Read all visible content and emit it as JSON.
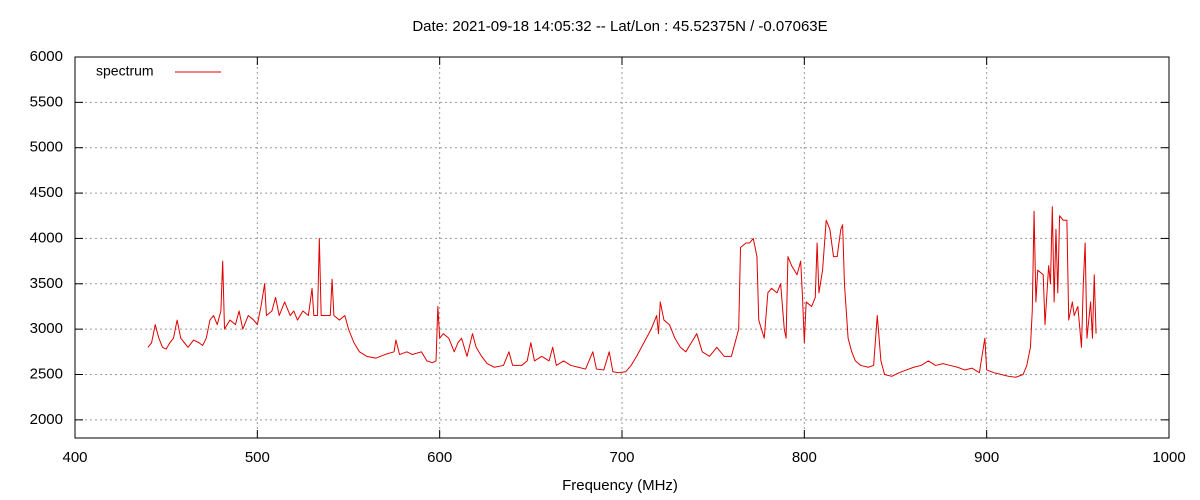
{
  "chart_data": {
    "type": "line",
    "title": "Date: 2021-09-18 14:05:32  --  Lat/Lon : 45.52375N / -0.07063E",
    "x_label": "Frequency (MHz)",
    "legend": "top-left",
    "grid": true,
    "xlim": [
      400,
      1000
    ],
    "xticks": [
      400,
      500,
      600,
      700,
      800,
      900,
      1000
    ],
    "ylim": [
      1800,
      6000
    ],
    "yticks": [
      2000,
      2500,
      3000,
      3500,
      4000,
      4500,
      5000,
      5500,
      6000
    ],
    "x": [
      440,
      442,
      444,
      446,
      448,
      450,
      452,
      454,
      456,
      458,
      460,
      462,
      465,
      468,
      470,
      472,
      474,
      476,
      478,
      480,
      481,
      482,
      485,
      488,
      490,
      492,
      495,
      498,
      500,
      502,
      504,
      505,
      508,
      510,
      512,
      515,
      518,
      520,
      522,
      525,
      528,
      530,
      531,
      533,
      534,
      535,
      538,
      540,
      541,
      542,
      545,
      548,
      550,
      553,
      556,
      560,
      565,
      570,
      575,
      576,
      578,
      582,
      585,
      590,
      593,
      596,
      598,
      599,
      600,
      602,
      605,
      608,
      610,
      612,
      615,
      618,
      620,
      623,
      626,
      630,
      635,
      638,
      640,
      645,
      648,
      650,
      652,
      656,
      660,
      662,
      664,
      668,
      672,
      676,
      680,
      684,
      686,
      690,
      693,
      695,
      698,
      702,
      705,
      708,
      712,
      716,
      719,
      720,
      721,
      723,
      726,
      729,
      732,
      735,
      738,
      741,
      744,
      748,
      752,
      756,
      760,
      762,
      764,
      765,
      768,
      770,
      772,
      774,
      775,
      778,
      780,
      782,
      785,
      787,
      789,
      790,
      791,
      793,
      796,
      798,
      799,
      800,
      801,
      804,
      806,
      807,
      808,
      810,
      812,
      814,
      816,
      818,
      820,
      821,
      822,
      824,
      826,
      828,
      831,
      835,
      838,
      840,
      842,
      844,
      848,
      852,
      856,
      860,
      864,
      868,
      872,
      876,
      880,
      884,
      888,
      892,
      896,
      899,
      900,
      904,
      908,
      912,
      916,
      920,
      922,
      924,
      925,
      926,
      927,
      928,
      931,
      932,
      934,
      935,
      936,
      937,
      938,
      939,
      940,
      942,
      944,
      945,
      947,
      948,
      950,
      952,
      953,
      954,
      955,
      957,
      958,
      959,
      960
    ],
    "series": [
      {
        "name": "spectrum",
        "color": "#e00000",
        "values": [
          2800,
          2850,
          3050,
          2900,
          2800,
          2780,
          2850,
          2900,
          3100,
          2900,
          2850,
          2800,
          2880,
          2850,
          2820,
          2900,
          3100,
          3150,
          3050,
          3200,
          3750,
          3000,
          3100,
          3050,
          3200,
          3000,
          3150,
          3100,
          3050,
          3250,
          3500,
          3150,
          3200,
          3350,
          3150,
          3300,
          3150,
          3200,
          3100,
          3200,
          3150,
          3450,
          3150,
          3150,
          4000,
          3150,
          3150,
          3150,
          3550,
          3150,
          3100,
          3150,
          3000,
          2850,
          2750,
          2700,
          2680,
          2720,
          2750,
          2880,
          2720,
          2750,
          2720,
          2750,
          2650,
          2630,
          2650,
          3250,
          2900,
          2950,
          2900,
          2750,
          2850,
          2900,
          2700,
          2950,
          2800,
          2700,
          2620,
          2580,
          2600,
          2750,
          2600,
          2600,
          2650,
          2850,
          2650,
          2700,
          2650,
          2800,
          2600,
          2650,
          2600,
          2580,
          2560,
          2750,
          2560,
          2550,
          2750,
          2530,
          2520,
          2530,
          2600,
          2700,
          2850,
          3000,
          3150,
          2950,
          3300,
          3100,
          3050,
          2900,
          2800,
          2750,
          2850,
          2950,
          2750,
          2700,
          2800,
          2700,
          2700,
          2850,
          3000,
          3900,
          3950,
          3950,
          4000,
          3800,
          3100,
          2900,
          3400,
          3450,
          3400,
          3500,
          3000,
          2900,
          3800,
          3700,
          3600,
          3750,
          3350,
          2850,
          3300,
          3250,
          3350,
          3950,
          3400,
          3650,
          4200,
          4100,
          3800,
          3800,
          4100,
          4150,
          3500,
          2900,
          2750,
          2650,
          2600,
          2580,
          2600,
          3150,
          2650,
          2500,
          2480,
          2520,
          2550,
          2580,
          2600,
          2650,
          2600,
          2620,
          2600,
          2580,
          2550,
          2570,
          2520,
          2900,
          2550,
          2520,
          2500,
          2480,
          2470,
          2500,
          2600,
          2800,
          3200,
          4300,
          3300,
          3650,
          3600,
          3050,
          3700,
          3500,
          4350,
          3300,
          4100,
          3400,
          4250,
          4200,
          4200,
          3100,
          3300,
          3150,
          3250,
          2800,
          3500,
          3950,
          2900,
          3300,
          2900,
          3600,
          2950
        ]
      }
    ]
  }
}
